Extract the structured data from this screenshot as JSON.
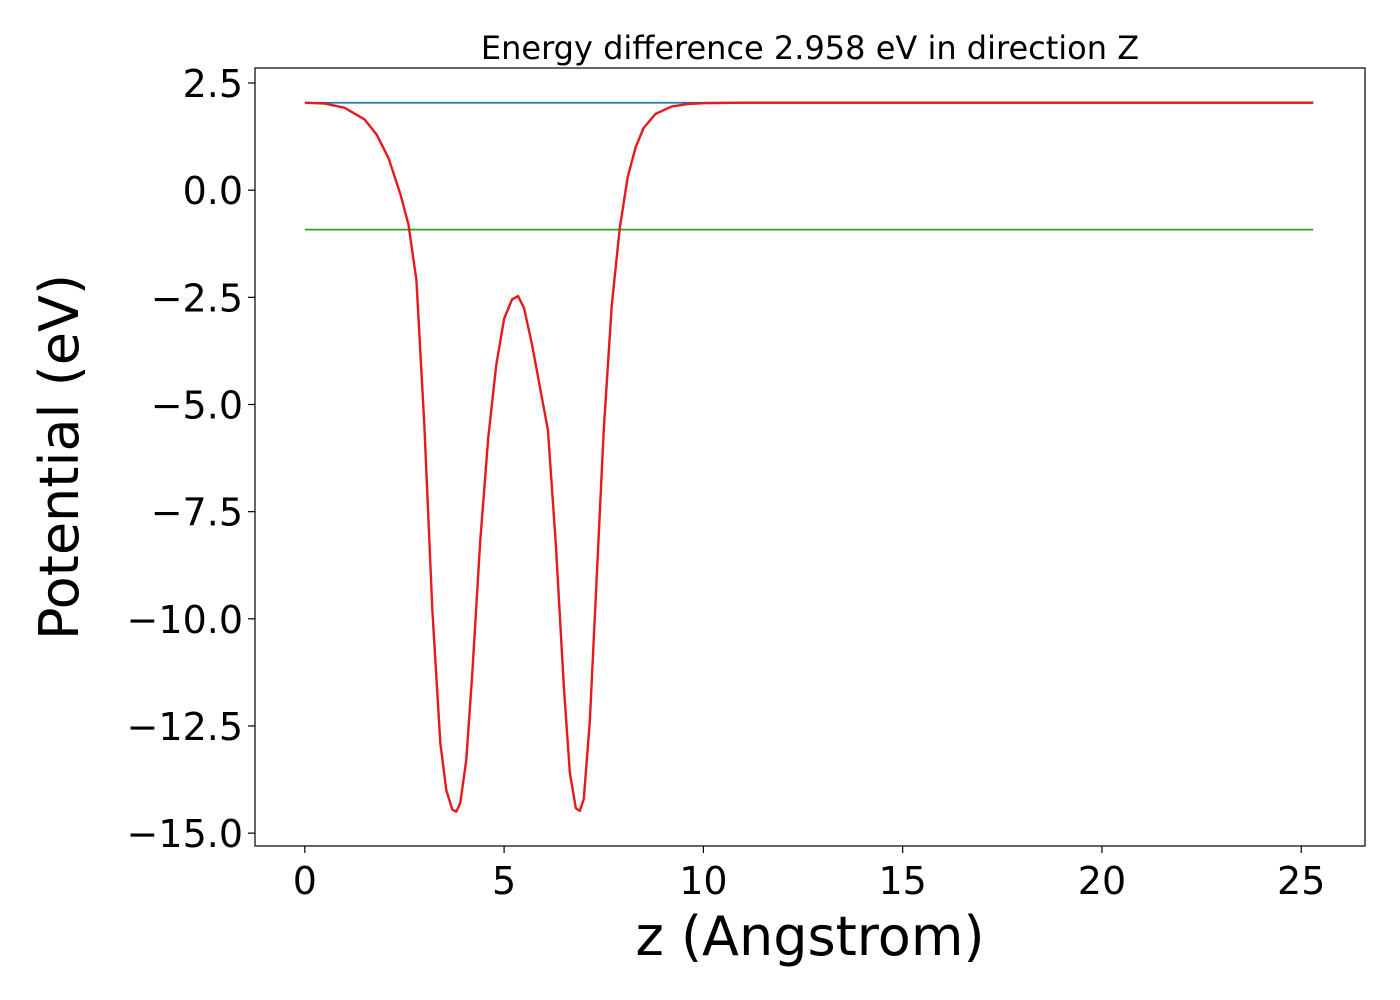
{
  "chart_data": {
    "type": "line",
    "title": "Energy difference 2.958 eV in direction Z",
    "xlabel": "z (Angstrom)",
    "ylabel": "Potential (eV)",
    "xlim": [
      -1.25,
      26.6
    ],
    "ylim": [
      -15.3,
      2.85
    ],
    "x_ticks": [
      0,
      5,
      10,
      15,
      20,
      25
    ],
    "x_tick_labels": [
      "0",
      "5",
      "10",
      "15",
      "20",
      "25"
    ],
    "y_ticks": [
      2.5,
      0.0,
      -2.5,
      -5.0,
      -7.5,
      -10.0,
      -12.5,
      -15.0
    ],
    "y_tick_labels": [
      "2.5",
      "0.0",
      "−2.5",
      "−5.0",
      "−7.5",
      "−10.0",
      "−12.5",
      "−15.0"
    ],
    "grid": false,
    "series": [
      {
        "color": "#1f77b4",
        "x": [
          0,
          25.3
        ],
        "y": [
          2.04,
          2.04
        ]
      },
      {
        "color": "#2ca02c",
        "x": [
          0,
          25.3
        ],
        "y": [
          -0.92,
          -0.92
        ]
      },
      {
        "color": "#9467bd",
        "x": [
          10.0,
          25.3
        ],
        "y": [
          2.04,
          2.04
        ]
      },
      {
        "color": "#e41a1c",
        "x": [
          0,
          0.5,
          1.0,
          1.5,
          1.8,
          2.1,
          2.4,
          2.6,
          2.8,
          3.0,
          3.2,
          3.4,
          3.55,
          3.7,
          3.8,
          3.9,
          4.05,
          4.2,
          4.4,
          4.6,
          4.8,
          5.0,
          5.2,
          5.35,
          5.5,
          5.7,
          5.9,
          6.1,
          6.3,
          6.5,
          6.65,
          6.8,
          6.9,
          7.0,
          7.15,
          7.3,
          7.5,
          7.7,
          7.9,
          8.1,
          8.3,
          8.5,
          8.8,
          9.2,
          9.6,
          10.0,
          11.0,
          12.0,
          15.0,
          20.0,
          25.3
        ],
        "y": [
          2.04,
          2.02,
          1.92,
          1.65,
          1.3,
          0.75,
          -0.1,
          -0.8,
          -2.1,
          -5.5,
          -9.8,
          -12.9,
          -14.0,
          -14.45,
          -14.5,
          -14.3,
          -13.3,
          -11.3,
          -8.2,
          -5.8,
          -4.1,
          -3.0,
          -2.55,
          -2.47,
          -2.75,
          -3.6,
          -4.6,
          -5.6,
          -8.3,
          -11.6,
          -13.6,
          -14.42,
          -14.48,
          -14.2,
          -12.4,
          -9.5,
          -5.6,
          -2.7,
          -0.9,
          0.3,
          1.0,
          1.45,
          1.78,
          1.95,
          2.01,
          2.03,
          2.04,
          2.04,
          2.04,
          2.04,
          2.04
        ]
      }
    ]
  }
}
